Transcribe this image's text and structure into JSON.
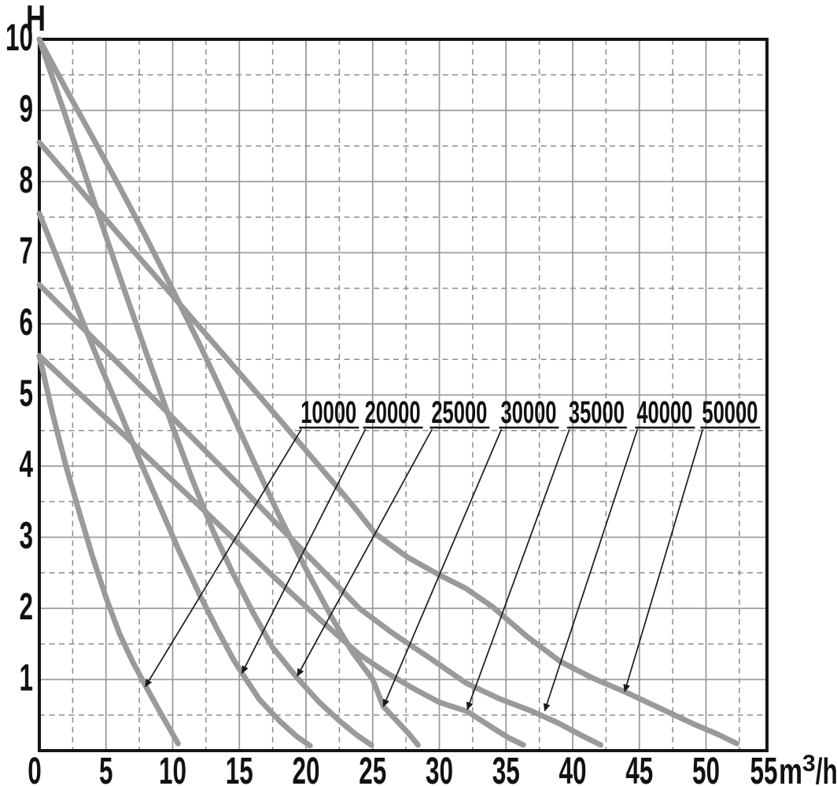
{
  "chart_data": {
    "type": "line",
    "title": "",
    "ylabel": "H",
    "x_unit": {
      "base": "m",
      "sup": "3",
      "rest": "/h"
    },
    "x_ticks": [
      0,
      5,
      10,
      15,
      20,
      25,
      30,
      35,
      40,
      45,
      50,
      55
    ],
    "y_ticks": [
      10,
      9,
      8,
      7,
      6,
      5,
      4,
      3,
      2,
      1
    ],
    "xlim": [
      0,
      54.6
    ],
    "ylim": [
      0,
      10
    ],
    "x_major_step": 5,
    "x_minor_step": 2.5,
    "y_major_step": 1,
    "y_minor_step": 0.5,
    "grid": "solid major lines, dashed minor lines",
    "legend_position": "inline labels with leader arrows",
    "colors": {
      "curve": "#9a9a9a",
      "grid_solid": "#9b9b9b",
      "grid_dashed": "#8d8d8d",
      "axis": "#141414",
      "text": "#111111",
      "leader": "#1a1a1a"
    },
    "series": [
      {
        "name": "10000",
        "label_x": 19.6,
        "arrow_tip": [
          7.95,
          0.9
        ],
        "points": [
          [
            0,
            5.55
          ],
          [
            1,
            4.73
          ],
          [
            2,
            4.0
          ],
          [
            3,
            3.35
          ],
          [
            4,
            2.72
          ],
          [
            5,
            2.15
          ],
          [
            6,
            1.65
          ],
          [
            7,
            1.25
          ],
          [
            8,
            0.9
          ],
          [
            9,
            0.56
          ],
          [
            9.8,
            0.3
          ],
          [
            10.4,
            0.1
          ]
        ]
      },
      {
        "name": "20000",
        "label_x": 24.4,
        "arrow_tip": [
          15.2,
          1.09
        ],
        "points": [
          [
            0,
            7.55
          ],
          [
            1.5,
            6.85
          ],
          [
            3,
            6.15
          ],
          [
            4.5,
            5.45
          ],
          [
            6,
            4.78
          ],
          [
            7.5,
            4.1
          ],
          [
            9,
            3.45
          ],
          [
            10.5,
            2.8
          ],
          [
            12,
            2.2
          ],
          [
            13.3,
            1.72
          ],
          [
            14.5,
            1.3
          ],
          [
            15.2,
            1.09
          ],
          [
            16.5,
            0.72
          ],
          [
            18,
            0.42
          ],
          [
            19.3,
            0.2
          ],
          [
            20.3,
            0.07
          ]
        ]
      },
      {
        "name": "25000",
        "label_x": 29.4,
        "arrow_tip": [
          19.35,
          1.05
        ],
        "points": [
          [
            0,
            10
          ],
          [
            2,
            8.9
          ],
          [
            4,
            7.78
          ],
          [
            6,
            6.68
          ],
          [
            8,
            5.6
          ],
          [
            10,
            4.55
          ],
          [
            11.5,
            3.8
          ],
          [
            13,
            3.1
          ],
          [
            14.5,
            2.5
          ],
          [
            16,
            1.95
          ],
          [
            17.5,
            1.45
          ],
          [
            19.35,
            1.02
          ],
          [
            21,
            0.68
          ],
          [
            22.5,
            0.42
          ],
          [
            23.8,
            0.22
          ],
          [
            24.9,
            0.08
          ]
        ]
      },
      {
        "name": "30000",
        "label_x": 34.6,
        "arrow_tip": [
          25.8,
          0.62
        ],
        "points": [
          [
            0,
            10
          ],
          [
            2,
            9.3
          ],
          [
            4,
            8.62
          ],
          [
            6,
            7.93
          ],
          [
            8,
            7.22
          ],
          [
            10,
            6.48
          ],
          [
            12,
            5.72
          ],
          [
            14,
            4.92
          ],
          [
            16,
            4.1
          ],
          [
            18,
            3.3
          ],
          [
            20,
            2.55
          ],
          [
            22,
            1.85
          ],
          [
            23.5,
            1.38
          ],
          [
            25,
            1.0
          ],
          [
            25.8,
            0.62
          ],
          [
            26.8,
            0.42
          ],
          [
            27.7,
            0.24
          ],
          [
            28.4,
            0.08
          ]
        ]
      },
      {
        "name": "35000",
        "label_x": 39.7,
        "arrow_tip": [
          32.1,
          0.58
        ],
        "points": [
          [
            0,
            5.55
          ],
          [
            3,
            5.02
          ],
          [
            6,
            4.5
          ],
          [
            9,
            3.97
          ],
          [
            12,
            3.44
          ],
          [
            15,
            2.9
          ],
          [
            18,
            2.37
          ],
          [
            21,
            1.85
          ],
          [
            24,
            1.35
          ],
          [
            26,
            1.1
          ],
          [
            28,
            0.88
          ],
          [
            30,
            0.68
          ],
          [
            32.1,
            0.55
          ],
          [
            34,
            0.32
          ],
          [
            35.2,
            0.18
          ],
          [
            36.3,
            0.08
          ]
        ]
      },
      {
        "name": "40000",
        "label_x": 44.8,
        "arrow_tip": [
          37.9,
          0.56
        ],
        "points": [
          [
            0,
            6.55
          ],
          [
            3,
            5.99
          ],
          [
            6,
            5.43
          ],
          [
            9,
            4.87
          ],
          [
            12,
            4.3
          ],
          [
            15,
            3.73
          ],
          [
            18,
            3.15
          ],
          [
            21,
            2.58
          ],
          [
            24,
            2.0
          ],
          [
            26.5,
            1.65
          ],
          [
            29.3,
            1.3
          ],
          [
            32,
            0.95
          ],
          [
            34.5,
            0.73
          ],
          [
            37,
            0.55
          ],
          [
            39,
            0.38
          ],
          [
            40.6,
            0.22
          ],
          [
            42.1,
            0.08
          ]
        ]
      },
      {
        "name": "50000",
        "label_x": 49.7,
        "arrow_tip": [
          43.9,
          0.83
        ],
        "points": [
          [
            0,
            8.55
          ],
          [
            3,
            7.9
          ],
          [
            6,
            7.25
          ],
          [
            9,
            6.61
          ],
          [
            12,
            5.96
          ],
          [
            15,
            5.31
          ],
          [
            18,
            4.66
          ],
          [
            21,
            4.0
          ],
          [
            23.5,
            3.45
          ],
          [
            25.2,
            3.05
          ],
          [
            27.6,
            2.72
          ],
          [
            30,
            2.47
          ],
          [
            32,
            2.28
          ],
          [
            34,
            2.02
          ],
          [
            36.6,
            1.6
          ],
          [
            39.1,
            1.25
          ],
          [
            41.5,
            1.02
          ],
          [
            44,
            0.82
          ],
          [
            46.5,
            0.6
          ],
          [
            49,
            0.38
          ],
          [
            51,
            0.22
          ],
          [
            52.3,
            0.1
          ]
        ]
      }
    ]
  }
}
